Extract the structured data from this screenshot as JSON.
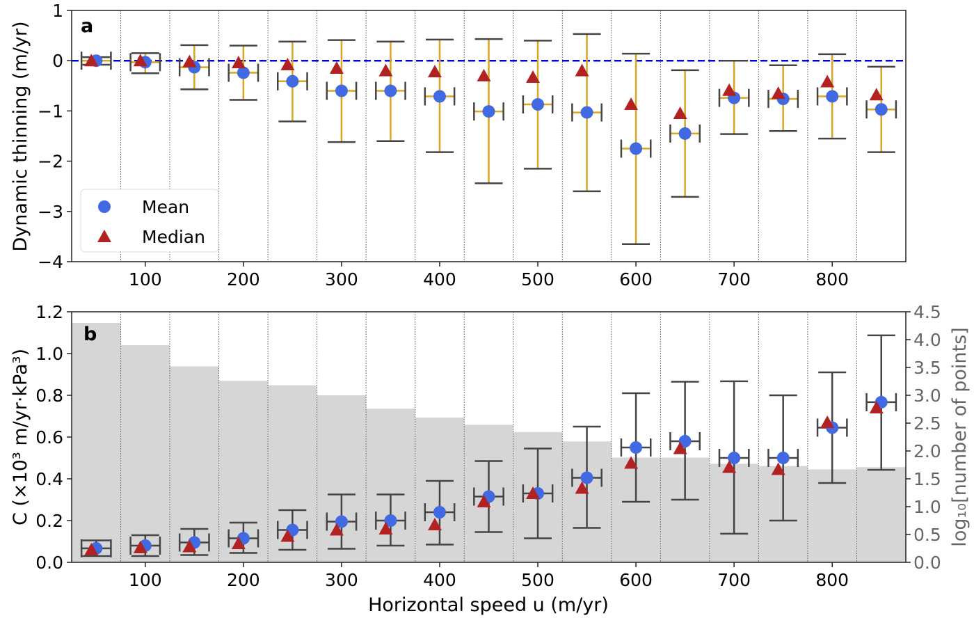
{
  "chart_data": [
    {
      "type": "scatter",
      "panel_label": "a",
      "ylabel": "Dynamic thinning (m/yr)",
      "xlim": [
        25,
        875
      ],
      "ylim": [
        -4,
        1
      ],
      "yticks": [
        "1",
        "0",
        "−1",
        "−2",
        "−3",
        "−4"
      ],
      "ytick_values": [
        1,
        0,
        -1,
        -2,
        -3,
        -4
      ],
      "xticks": [
        "100",
        "200",
        "300",
        "400",
        "500",
        "600",
        "700",
        "800"
      ],
      "xtick_values": [
        100,
        200,
        300,
        400,
        500,
        600,
        700,
        800
      ],
      "bin_edges": [
        75,
        125,
        175,
        225,
        275,
        325,
        375,
        425,
        475,
        525,
        575,
        625,
        675,
        725,
        775,
        825
      ],
      "reference_line": 0,
      "legend": {
        "placement": "lower-left",
        "entries": [
          "Mean",
          "Median"
        ]
      },
      "x": [
        50,
        100,
        150,
        200,
        250,
        300,
        350,
        400,
        450,
        500,
        550,
        600,
        650,
        700,
        750,
        800,
        850
      ],
      "mean": [
        0.0,
        -0.03,
        -0.13,
        -0.24,
        -0.41,
        -0.6,
        -0.6,
        -0.71,
        -1.01,
        -0.87,
        -1.03,
        -1.75,
        -1.45,
        -0.74,
        -0.76,
        -0.71,
        -0.97
      ],
      "median": [
        0.0,
        0.0,
        -0.02,
        -0.04,
        -0.08,
        -0.15,
        -0.2,
        -0.22,
        -0.3,
        -0.33,
        -0.2,
        -0.87,
        -1.05,
        -0.59,
        -0.65,
        -0.42,
        -0.68
      ],
      "err_upper": [
        0.07,
        0.15,
        0.31,
        0.3,
        0.38,
        0.41,
        0.38,
        0.42,
        0.43,
        0.4,
        0.53,
        0.14,
        -0.19,
        0.0,
        -0.09,
        0.13,
        -0.12
      ],
      "err_lower": [
        -0.08,
        -0.25,
        -0.57,
        -0.78,
        -1.21,
        -1.62,
        -1.6,
        -1.82,
        -2.44,
        -2.15,
        -2.6,
        -3.65,
        -2.71,
        -1.46,
        -1.4,
        -1.55,
        -1.82
      ],
      "x_err": 15,
      "colors": {
        "mean": "#4169e1",
        "median": "#b22222",
        "errorbar": "#daa520",
        "caps": "#444444",
        "zero_line": "#0000dd"
      }
    },
    {
      "type": "scatter",
      "panel_label": "b",
      "ylabel": "C (×10³ m/yr·kPa³)",
      "ylabel_right": "log₁₀[number of points]",
      "xlabel": "Horizontal speed u (m/yr)",
      "xlim": [
        25,
        875
      ],
      "ylim": [
        0,
        1.2
      ],
      "ylim_right": [
        0,
        4.5
      ],
      "yticks": [
        "0.0",
        "0.2",
        "0.4",
        "0.6",
        "0.8",
        "1.0",
        "1.2"
      ],
      "ytick_values": [
        0,
        0.2,
        0.4,
        0.6,
        0.8,
        1.0,
        1.2
      ],
      "yticks_right": [
        "0.0",
        "0.5",
        "1.0",
        "1.5",
        "2.0",
        "2.5",
        "3.0",
        "3.5",
        "4.0",
        "4.5"
      ],
      "ytick_right_values": [
        0,
        0.5,
        1.0,
        1.5,
        2.0,
        2.5,
        3.0,
        3.5,
        4.0,
        4.5
      ],
      "xticks": [
        "100",
        "200",
        "300",
        "400",
        "500",
        "600",
        "700",
        "800"
      ],
      "xtick_values": [
        100,
        200,
        300,
        400,
        500,
        600,
        700,
        800
      ],
      "x": [
        50,
        100,
        150,
        200,
        250,
        300,
        350,
        400,
        450,
        500,
        550,
        600,
        650,
        700,
        750,
        800,
        850
      ],
      "log10_count": [
        4.3,
        3.9,
        3.52,
        3.26,
        3.18,
        3.0,
        2.76,
        2.6,
        2.47,
        2.34,
        2.17,
        1.88,
        1.88,
        1.77,
        1.73,
        1.67,
        1.71
      ],
      "mean": [
        0.067,
        0.08,
        0.095,
        0.115,
        0.155,
        0.195,
        0.2,
        0.24,
        0.315,
        0.33,
        0.405,
        0.55,
        0.58,
        0.5,
        0.5,
        0.645,
        0.767
      ],
      "median": [
        0.06,
        0.07,
        0.075,
        0.09,
        0.125,
        0.155,
        0.16,
        0.18,
        0.29,
        0.33,
        0.355,
        0.475,
        0.545,
        0.455,
        0.445,
        0.67,
        0.74
      ],
      "err_upper": [
        0.105,
        0.13,
        0.16,
        0.19,
        0.25,
        0.325,
        0.325,
        0.39,
        0.485,
        0.545,
        0.65,
        0.81,
        0.865,
        0.867,
        0.8,
        0.91,
        1.087
      ],
      "err_lower": [
        0.03,
        0.03,
        0.035,
        0.045,
        0.06,
        0.065,
        0.08,
        0.085,
        0.145,
        0.115,
        0.165,
        0.29,
        0.3,
        0.137,
        0.2,
        0.38,
        0.443
      ],
      "x_err": 15,
      "colors": {
        "mean": "#4169e1",
        "median": "#b22222",
        "errorbar": "#444444",
        "bars": "#d6d6d6",
        "right_axis": "#666666"
      }
    }
  ]
}
